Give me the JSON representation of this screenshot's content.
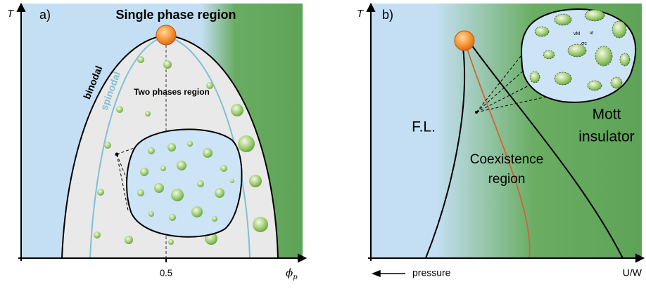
{
  "panel_a": {
    "axis_y": "T",
    "label": "a)",
    "title": "Single phase region",
    "binodal": "binodal",
    "spinodal": "spinodal",
    "inner_label": "Two phases region",
    "x_tick": "0.5",
    "axis_x": {
      "symbol": "ϕ",
      "subscript": "p"
    }
  },
  "panel_b": {
    "axis_y": "T",
    "label": "b)",
    "left_region": "F.L.",
    "middle_region": [
      "Coexistence",
      "region"
    ],
    "right_region": [
      "Mott",
      "insulator"
    ],
    "axis_x_left": "pressure",
    "axis_x_right": "U/W",
    "inset_labels": [
      "νM",
      "νI",
      "σc"
    ]
  }
}
